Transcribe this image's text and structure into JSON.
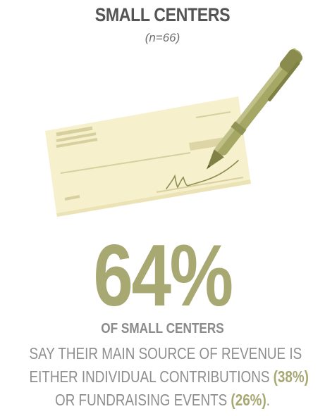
{
  "header": {
    "title": "SMALL CENTERS",
    "subtitle": "(n=66)"
  },
  "illustration": {
    "icons": [
      "check-icon",
      "pen-icon",
      "signature-icon"
    ],
    "colors": {
      "check_paper": "#f6f0cc",
      "check_lines": "#d7cf9e",
      "pen_body": "#a5a765",
      "pen_dark": "#7f8244"
    }
  },
  "stat": {
    "value": "64%",
    "color": "#a8a873"
  },
  "caption": {
    "lead": "OF SMALL CENTERS",
    "line1": "SAY THEIR MAIN SOURCE OF REVENUE IS",
    "line2_text": "EITHER INDIVIDUAL CONTRIBUTIONS",
    "line2_pct": "(38%)",
    "line3_text": "OR FUNDRAISING EVENTS",
    "line3_pct": "(26%)",
    "line3_end": "."
  }
}
